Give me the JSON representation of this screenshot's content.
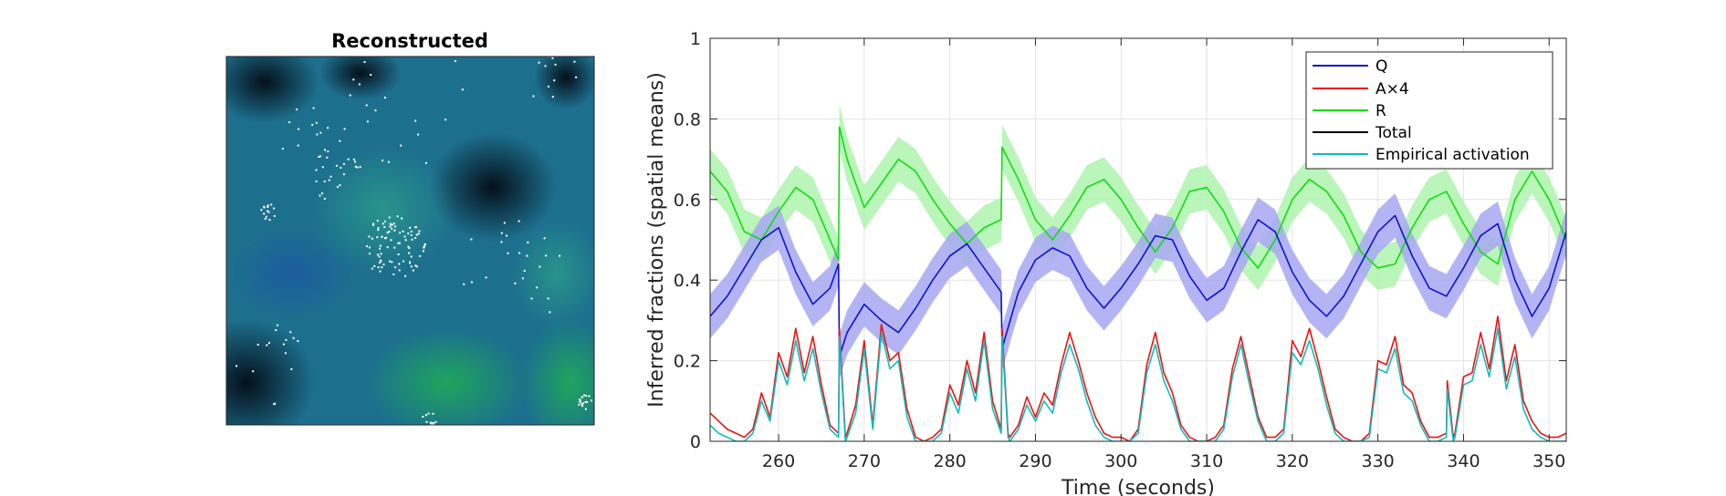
{
  "left_panel": {
    "title": "Reconstructed"
  },
  "chart_data": {
    "type": "line",
    "xlabel": "Time (seconds)",
    "ylabel": "Inferred fractions (spatial means)",
    "xlim": [
      252,
      352
    ],
    "ylim": [
      0,
      1
    ],
    "xticks": [
      260,
      270,
      280,
      290,
      300,
      310,
      320,
      330,
      340,
      350
    ],
    "yticks": [
      0,
      0.2,
      0.4,
      0.6,
      0.8,
      1
    ],
    "ytick_labels": [
      "0",
      "0.2",
      "0.4",
      "0.6",
      "0.8",
      "1"
    ],
    "grid": true,
    "legend_position": "top-right",
    "legend": [
      "Q",
      "A×4",
      "R",
      "Total",
      "Empirical activation"
    ],
    "colors": {
      "Q": "#1010d0",
      "A": "#ee1111",
      "R": "#11dd11",
      "Total": "#000000",
      "Empirical": "#11bbbb",
      "Q_band": "#a7a7f2",
      "R_band": "#aef3ae"
    },
    "band_halfwidth": 0.055,
    "series": [
      {
        "name": "Q",
        "x": [
          252,
          254,
          256,
          258,
          260,
          262,
          264,
          266,
          267,
          267.1,
          268,
          270,
          272,
          274,
          276,
          278,
          280,
          282,
          284,
          286,
          286.1,
          288,
          290,
          292,
          294,
          296,
          298,
          300,
          302,
          304,
          306,
          308,
          310,
          312,
          314,
          316,
          318,
          320,
          322,
          324,
          326,
          328,
          330,
          332,
          334,
          336,
          338,
          340,
          342,
          344,
          346,
          348,
          350,
          352
        ],
        "y": [
          0.31,
          0.36,
          0.43,
          0.5,
          0.53,
          0.42,
          0.34,
          0.38,
          0.44,
          0.21,
          0.27,
          0.34,
          0.3,
          0.27,
          0.33,
          0.4,
          0.46,
          0.49,
          0.43,
          0.37,
          0.23,
          0.37,
          0.45,
          0.48,
          0.46,
          0.38,
          0.33,
          0.38,
          0.44,
          0.51,
          0.5,
          0.41,
          0.35,
          0.38,
          0.47,
          0.55,
          0.52,
          0.42,
          0.35,
          0.31,
          0.36,
          0.44,
          0.52,
          0.56,
          0.46,
          0.38,
          0.36,
          0.43,
          0.51,
          0.54,
          0.4,
          0.31,
          0.38,
          0.52
        ]
      },
      {
        "name": "A×4",
        "x": [
          252,
          253,
          254,
          255,
          256,
          257,
          258,
          259,
          260,
          261,
          262,
          263,
          264,
          265,
          266,
          267,
          267.1,
          267.8,
          268,
          269,
          270,
          271,
          272,
          273,
          274,
          275,
          276,
          277,
          278,
          279,
          280,
          281,
          282,
          283,
          284,
          285,
          286,
          286.1,
          286.8,
          287,
          288,
          289,
          290,
          291,
          292,
          293,
          294,
          295,
          296,
          297,
          298,
          299,
          300,
          301,
          302,
          303,
          304,
          305,
          306,
          307,
          308,
          309,
          310,
          311,
          312,
          313,
          314,
          315,
          316,
          317,
          318,
          319,
          320,
          321,
          322,
          323,
          324,
          325,
          326,
          327,
          328,
          329,
          330,
          331,
          332,
          333,
          334,
          335,
          336,
          337,
          338,
          338.1,
          338.8,
          339,
          340,
          341,
          342,
          343,
          344,
          345,
          346,
          347,
          348,
          349,
          350,
          351,
          352
        ],
        "y": [
          0.07,
          0.05,
          0.03,
          0.02,
          0.01,
          0.03,
          0.12,
          0.06,
          0.22,
          0.16,
          0.28,
          0.17,
          0.26,
          0.14,
          0.04,
          0.02,
          0.28,
          0.01,
          0.02,
          0.09,
          0.25,
          0.04,
          0.29,
          0.2,
          0.22,
          0.08,
          0.01,
          0.0,
          0.01,
          0.03,
          0.14,
          0.09,
          0.2,
          0.12,
          0.27,
          0.1,
          0.03,
          0.28,
          0.02,
          0.01,
          0.04,
          0.11,
          0.06,
          0.12,
          0.09,
          0.19,
          0.27,
          0.2,
          0.12,
          0.06,
          0.02,
          0.01,
          0.01,
          0.0,
          0.03,
          0.19,
          0.27,
          0.17,
          0.12,
          0.04,
          0.01,
          0.0,
          0.0,
          0.01,
          0.04,
          0.18,
          0.26,
          0.16,
          0.06,
          0.01,
          0.01,
          0.03,
          0.25,
          0.21,
          0.28,
          0.2,
          0.11,
          0.03,
          0.01,
          0.0,
          0.0,
          0.02,
          0.2,
          0.19,
          0.26,
          0.14,
          0.12,
          0.05,
          0.01,
          0.01,
          0.02,
          0.15,
          0.01,
          0.02,
          0.16,
          0.17,
          0.27,
          0.18,
          0.31,
          0.15,
          0.24,
          0.1,
          0.05,
          0.02,
          0.01,
          0.01,
          0.02
        ]
      },
      {
        "name": "R",
        "x": [
          252,
          254,
          256,
          258,
          260,
          262,
          264,
          266,
          267,
          267.1,
          268,
          270,
          272,
          274,
          276,
          278,
          280,
          282,
          284,
          286,
          286.1,
          288,
          290,
          292,
          294,
          296,
          298,
          300,
          302,
          304,
          306,
          308,
          310,
          312,
          314,
          316,
          318,
          320,
          322,
          324,
          326,
          328,
          330,
          332,
          334,
          336,
          338,
          340,
          342,
          344,
          346,
          348,
          350,
          352
        ],
        "y": [
          0.67,
          0.62,
          0.52,
          0.5,
          0.57,
          0.63,
          0.6,
          0.5,
          0.45,
          0.78,
          0.7,
          0.58,
          0.64,
          0.7,
          0.67,
          0.6,
          0.54,
          0.49,
          0.53,
          0.55,
          0.73,
          0.65,
          0.55,
          0.5,
          0.56,
          0.63,
          0.65,
          0.6,
          0.53,
          0.47,
          0.53,
          0.62,
          0.63,
          0.57,
          0.48,
          0.43,
          0.5,
          0.6,
          0.65,
          0.62,
          0.56,
          0.47,
          0.43,
          0.44,
          0.53,
          0.6,
          0.62,
          0.54,
          0.47,
          0.44,
          0.6,
          0.67,
          0.6,
          0.5
        ]
      },
      {
        "name": "Empirical activation",
        "x": [
          252,
          253,
          254,
          255,
          256,
          257,
          258,
          259,
          260,
          261,
          262,
          263,
          264,
          265,
          266,
          267,
          267.1,
          267.8,
          268,
          269,
          270,
          271,
          272,
          273,
          274,
          275,
          276,
          277,
          278,
          279,
          280,
          281,
          282,
          283,
          284,
          285,
          286,
          286.1,
          286.8,
          287,
          288,
          289,
          290,
          291,
          292,
          293,
          294,
          295,
          296,
          297,
          298,
          299,
          300,
          301,
          302,
          303,
          304,
          305,
          306,
          307,
          308,
          309,
          310,
          311,
          312,
          313,
          314,
          315,
          316,
          317,
          318,
          319,
          320,
          321,
          322,
          323,
          324,
          325,
          326,
          327,
          328,
          329,
          330,
          331,
          332,
          333,
          334,
          335,
          336,
          337,
          338,
          338.1,
          338.8,
          339,
          340,
          341,
          342,
          343,
          344,
          345,
          346,
          347,
          348,
          349,
          350,
          351,
          352
        ],
        "y": [
          0.04,
          0.02,
          0.01,
          0.0,
          0.0,
          0.02,
          0.1,
          0.05,
          0.2,
          0.14,
          0.25,
          0.15,
          0.23,
          0.12,
          0.03,
          0.01,
          0.26,
          0.0,
          0.01,
          0.07,
          0.23,
          0.03,
          0.27,
          0.18,
          0.2,
          0.06,
          0.0,
          0.0,
          0.0,
          0.02,
          0.12,
          0.07,
          0.18,
          0.1,
          0.25,
          0.08,
          0.02,
          0.26,
          0.01,
          0.0,
          0.03,
          0.09,
          0.05,
          0.1,
          0.07,
          0.17,
          0.24,
          0.18,
          0.1,
          0.04,
          0.01,
          0.0,
          0.0,
          0.0,
          0.02,
          0.17,
          0.24,
          0.15,
          0.1,
          0.03,
          0.0,
          0.0,
          0.0,
          0.0,
          0.03,
          0.16,
          0.24,
          0.14,
          0.05,
          0.0,
          0.0,
          0.02,
          0.22,
          0.19,
          0.25,
          0.18,
          0.09,
          0.02,
          0.0,
          0.0,
          0.0,
          0.01,
          0.18,
          0.17,
          0.23,
          0.12,
          0.1,
          0.04,
          0.0,
          0.0,
          0.01,
          0.13,
          0.0,
          0.01,
          0.14,
          0.15,
          0.24,
          0.16,
          0.28,
          0.13,
          0.21,
          0.08,
          0.03,
          0.01,
          0.0,
          0.0,
          0.0
        ]
      }
    ]
  }
}
